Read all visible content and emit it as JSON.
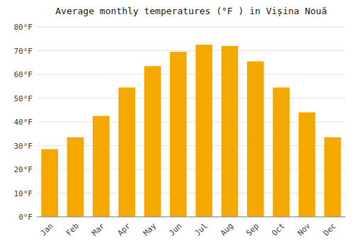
{
  "chart_data": {
    "type": "bar",
    "title": "Average monthly temperatures (°F ) in Vișina Nouă",
    "categories": [
      "Jan",
      "Feb",
      "Mar",
      "Apr",
      "May",
      "Jun",
      "Jul",
      "Aug",
      "Sep",
      "Oct",
      "Nov",
      "Dec"
    ],
    "values": [
      28.5,
      33.5,
      42.5,
      54.5,
      63.5,
      69.5,
      72.5,
      72.0,
      65.5,
      54.5,
      44.0,
      33.5
    ],
    "color": "#F5A800",
    "ylim": [
      0,
      80
    ],
    "yticks": [
      {
        "value": 0,
        "label": "0°F"
      },
      {
        "value": 10,
        "label": "10°F"
      },
      {
        "value": 20,
        "label": "20°F"
      },
      {
        "value": 30,
        "label": "30°F"
      },
      {
        "value": 40,
        "label": "40°F"
      },
      {
        "value": 50,
        "label": "50°F"
      },
      {
        "value": 60,
        "label": "60°F"
      },
      {
        "value": 70,
        "label": "70°F"
      },
      {
        "value": 80,
        "label": "80°F"
      }
    ],
    "grid": true
  }
}
